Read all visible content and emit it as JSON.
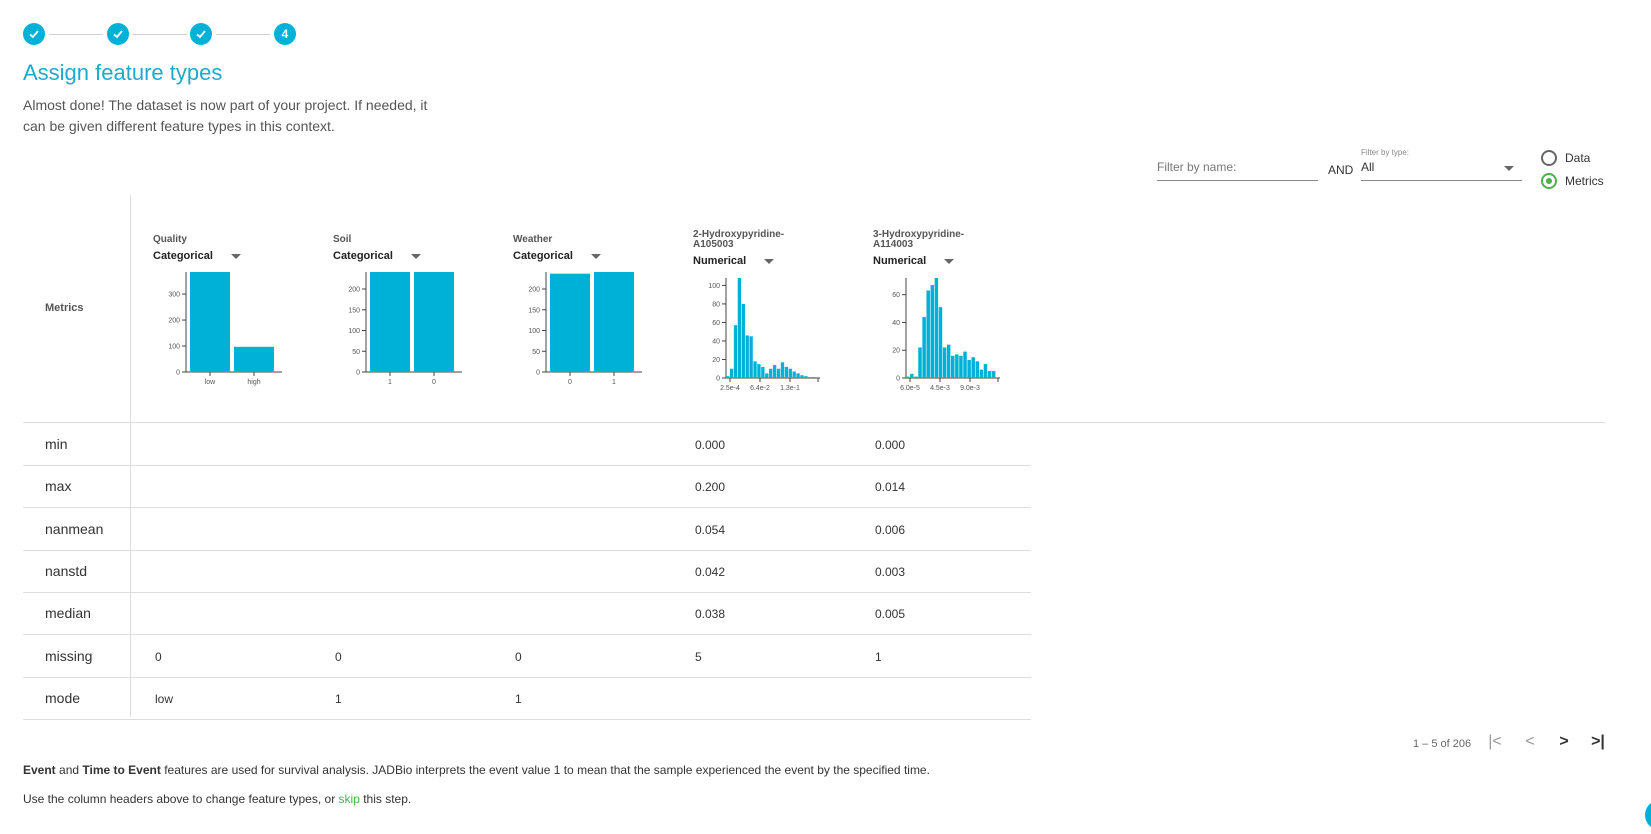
{
  "stepper": {
    "steps": [
      {
        "state": "done",
        "label": ""
      },
      {
        "state": "done",
        "label": ""
      },
      {
        "state": "done",
        "label": ""
      },
      {
        "state": "current",
        "label": "4"
      }
    ],
    "accent_color": "#00b1d7"
  },
  "header": {
    "title": "Assign feature types",
    "subtitle": "Almost done! The dataset is now part of your project. If needed, it can be given different feature types in this context."
  },
  "filters": {
    "name_placeholder": "Filter by name:",
    "and_label": "AND",
    "type_label": "Filter by type:",
    "type_value": "All",
    "view_options": [
      {
        "label": "Data",
        "selected": false
      },
      {
        "label": "Metrics",
        "selected": true
      }
    ]
  },
  "table": {
    "corner_header": "Metrics",
    "columns": [
      {
        "name": "Quality",
        "type": "Categorical"
      },
      {
        "name": "Soil",
        "type": "Categorical"
      },
      {
        "name": "Weather",
        "type": "Categorical"
      },
      {
        "name": "2-Hydroxypyridine-A105003",
        "name_line1": "2-Hydroxypyridine-",
        "name_line2": "A105003",
        "type": "Numerical"
      },
      {
        "name": "3-Hydroxypyridine-A114003",
        "name_line1": "3-Hydroxypyridine-",
        "name_line2": "A114003",
        "type": "Numerical"
      }
    ],
    "rows": [
      {
        "label": "min",
        "cells": [
          "",
          "",
          "",
          "0.000",
          "0.000"
        ]
      },
      {
        "label": "max",
        "cells": [
          "",
          "",
          "",
          "0.200",
          "0.014"
        ]
      },
      {
        "label": "nanmean",
        "cells": [
          "",
          "",
          "",
          "0.054",
          "0.006"
        ]
      },
      {
        "label": "nanstd",
        "cells": [
          "",
          "",
          "",
          "0.042",
          "0.003"
        ]
      },
      {
        "label": "median",
        "cells": [
          "",
          "",
          "",
          "0.038",
          "0.005"
        ]
      },
      {
        "label": "missing",
        "cells": [
          "0",
          "0",
          "0",
          "5",
          "1"
        ]
      },
      {
        "label": "mode",
        "cells": [
          "low",
          "1",
          "1",
          "",
          ""
        ]
      }
    ]
  },
  "chart_data": [
    {
      "type": "bar",
      "categories": [
        "low",
        "high"
      ],
      "values": [
        385,
        97
      ],
      "ylim": [
        0,
        385
      ],
      "yticks": [
        0,
        100,
        200,
        300
      ],
      "xticks": [
        "low",
        "high"
      ],
      "color": "#00b1d7"
    },
    {
      "type": "bar",
      "categories": [
        "1",
        "0"
      ],
      "values": [
        241,
        241
      ],
      "ylim": [
        0,
        241
      ],
      "yticks": [
        0,
        50,
        100,
        150,
        200
      ],
      "xticks": [
        "1",
        "0"
      ],
      "color": "#00b1d7"
    },
    {
      "type": "bar",
      "categories": [
        "0",
        "1"
      ],
      "values": [
        237,
        241
      ],
      "ylim": [
        0,
        241
      ],
      "yticks": [
        0,
        50,
        100,
        150,
        200
      ],
      "xticks": [
        "0",
        "1"
      ],
      "color": "#00b1d7"
    },
    {
      "type": "bar",
      "values": [
        2,
        10,
        57,
        108,
        80,
        46,
        45,
        18,
        15,
        12,
        5,
        10,
        14,
        10,
        17,
        12,
        10,
        7,
        5,
        3,
        2,
        1,
        1
      ],
      "ylim": [
        0,
        108
      ],
      "yticks": [
        0,
        20,
        40,
        60,
        80,
        100
      ],
      "xticks": [
        "2.5e-4",
        "6.4e-2",
        "1.3e-1"
      ],
      "color": "#00b1d7"
    },
    {
      "type": "bar",
      "values": [
        1,
        3,
        1,
        22,
        44,
        63,
        67,
        72,
        51,
        22,
        24,
        16,
        17,
        16,
        19,
        13,
        15,
        12,
        6,
        10,
        5,
        5
      ],
      "ylim": [
        0,
        72
      ],
      "yticks": [
        0,
        20,
        40,
        60
      ],
      "xticks": [
        "6.0e-5",
        "4.5e-3",
        "9.0e-3"
      ],
      "color": "#00b1d7"
    }
  ],
  "pagination": {
    "range": "1 – 5 of 206",
    "first": "|<",
    "prev": "<",
    "next": ">",
    "last": ">|"
  },
  "footer": {
    "line1_b1": "Event",
    "line1_and": " and ",
    "line1_b2": "Time to Event",
    "line1_rest": " features are used for survival analysis. JADBio interprets the event value 1 to mean that the sample experienced the event by the specified time.",
    "line2_pre": "Use the column headers above to change feature types, or ",
    "line2_link": "skip",
    "line2_post": " this step."
  }
}
